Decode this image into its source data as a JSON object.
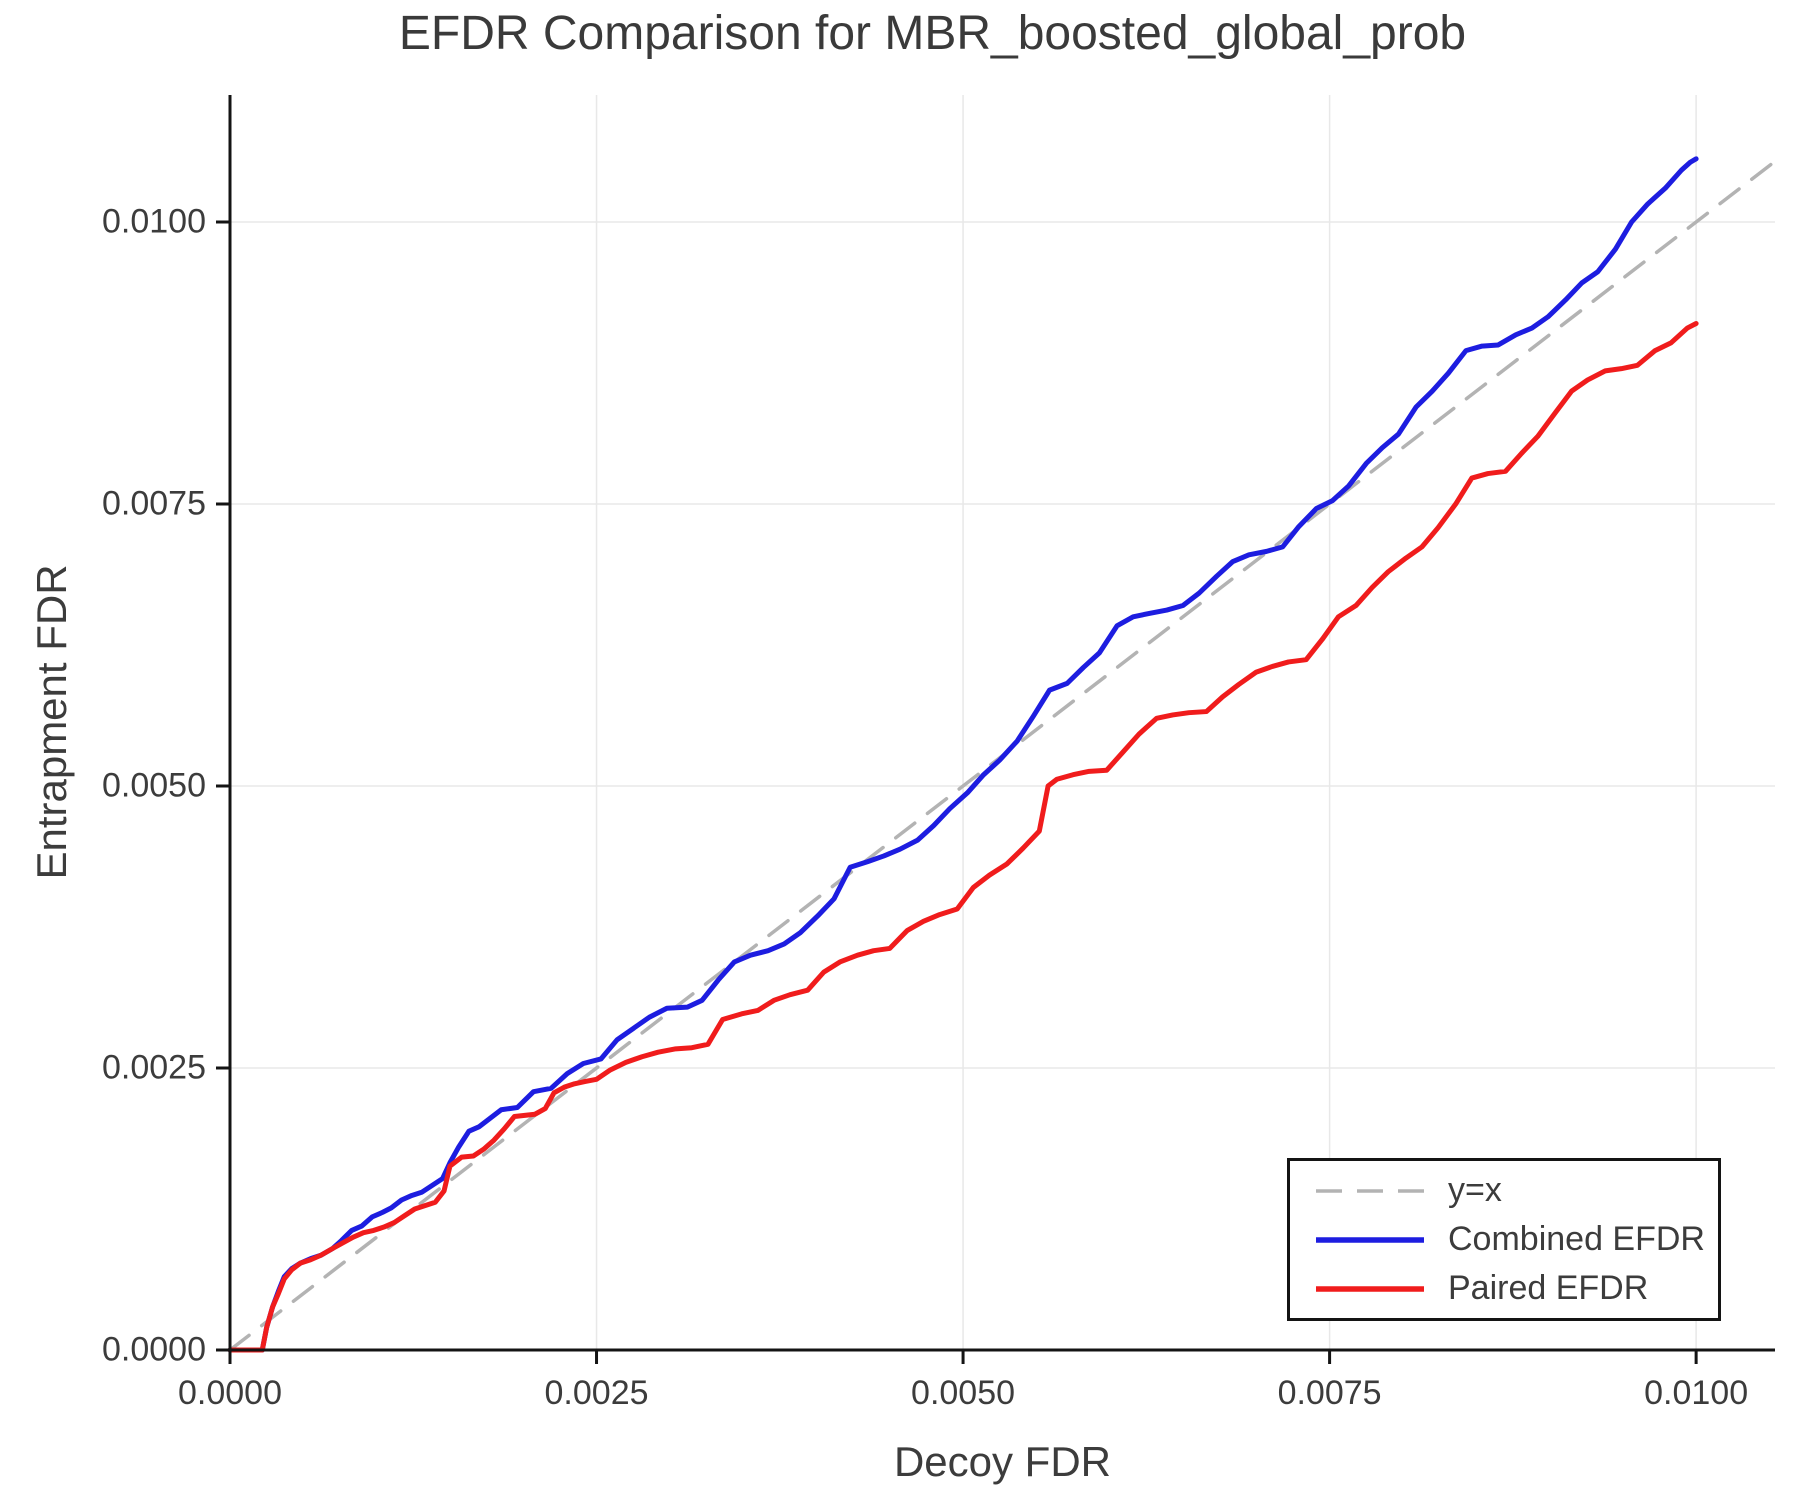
{
  "figure": {
    "background": "#ffffff",
    "text_color": "#3c3c3c",
    "axis_color": "#141414",
    "grid_color": "#e8e8e8"
  },
  "chart_data": {
    "type": "line",
    "title": "EFDR Comparison for MBR_boosted_global_prob",
    "xlabel": "Decoy FDR",
    "ylabel": "Entrapment FDR",
    "xlim": [
      0,
      0.010538
    ],
    "ylim": [
      0,
      0.011126
    ],
    "grid": true,
    "legend_position": "lower right",
    "x_tick_labels": [
      "0.0000",
      "0.0025",
      "0.0050",
      "0.0075",
      "0.0100"
    ],
    "x_tick_values": [
      0,
      0.0025,
      0.005,
      0.0075,
      0.01
    ],
    "y_tick_labels": [
      "0.0000",
      "0.0025",
      "0.0050",
      "0.0075",
      "0.0100"
    ],
    "y_tick_values": [
      0,
      0.0025,
      0.005,
      0.0075,
      0.01
    ],
    "points_scale": 0.0001,
    "series": [
      {
        "name": "y=x",
        "color": "#b3b3b3",
        "style": "dashed",
        "width": 3.5,
        "points": [
          [
            0,
            0
          ],
          [
            105.4,
            105.4
          ]
        ]
      },
      {
        "name": "Combined EFDR",
        "color": "#1d1de0",
        "style": "solid",
        "width": 5,
        "points": [
          [
            0,
            0
          ],
          [
            2.2,
            0
          ],
          [
            2.5,
            2
          ],
          [
            2.9,
            3.8
          ],
          [
            3.3,
            5.2
          ],
          [
            3.7,
            6.5
          ],
          [
            4.2,
            7.2
          ],
          [
            4.8,
            7.7
          ],
          [
            5.5,
            8.1
          ],
          [
            6.2,
            8.4
          ],
          [
            7,
            9
          ],
          [
            7.6,
            9.7
          ],
          [
            8.3,
            10.6
          ],
          [
            9,
            11
          ],
          [
            9.7,
            11.8
          ],
          [
            10.4,
            12.2
          ],
          [
            11,
            12.6
          ],
          [
            11.7,
            13.3
          ],
          [
            12.4,
            13.7
          ],
          [
            13.1,
            14
          ],
          [
            13.8,
            14.6
          ],
          [
            14.5,
            15.2
          ],
          [
            15,
            16.6
          ],
          [
            15.6,
            18
          ],
          [
            16.3,
            19.4
          ],
          [
            17,
            19.8
          ],
          [
            17.8,
            20.6
          ],
          [
            18.5,
            21.3
          ],
          [
            19.6,
            21.5
          ],
          [
            20.7,
            22.9
          ],
          [
            21.9,
            23.2
          ],
          [
            23,
            24.5
          ],
          [
            24.1,
            25.4
          ],
          [
            25.3,
            25.8
          ],
          [
            26.4,
            27.5
          ],
          [
            27.5,
            28.5
          ],
          [
            28.6,
            29.5
          ],
          [
            29.8,
            30.3
          ],
          [
            31.2,
            30.4
          ],
          [
            32.2,
            31
          ],
          [
            33.3,
            32.8
          ],
          [
            34.4,
            34.4
          ],
          [
            35.5,
            35
          ],
          [
            36.7,
            35.4
          ],
          [
            37.8,
            36
          ],
          [
            38.9,
            37
          ],
          [
            40.1,
            38.5
          ],
          [
            41.2,
            40
          ],
          [
            42.3,
            42.8
          ],
          [
            43.5,
            43.3
          ],
          [
            44.6,
            43.8
          ],
          [
            45.7,
            44.4
          ],
          [
            46.9,
            45.2
          ],
          [
            48,
            46.5
          ],
          [
            49.1,
            48
          ],
          [
            50.3,
            49.4
          ],
          [
            51.4,
            51
          ],
          [
            52.5,
            52.3
          ],
          [
            53.7,
            54
          ],
          [
            54.8,
            56.2
          ],
          [
            55.9,
            58.5
          ],
          [
            57.1,
            59.1
          ],
          [
            58.2,
            60.5
          ],
          [
            59.3,
            61.8
          ],
          [
            60.5,
            64.2
          ],
          [
            61.6,
            65
          ],
          [
            62.7,
            65.3
          ],
          [
            63.9,
            65.6
          ],
          [
            65,
            66
          ],
          [
            66.1,
            67.1
          ],
          [
            67.3,
            68.6
          ],
          [
            68.4,
            69.9
          ],
          [
            69.5,
            70.5
          ],
          [
            70.7,
            70.8
          ],
          [
            71.8,
            71.2
          ],
          [
            72.9,
            73
          ],
          [
            74.1,
            74.6
          ],
          [
            75.2,
            75.3
          ],
          [
            76.3,
            76.6
          ],
          [
            77.5,
            78.6
          ],
          [
            78.6,
            80
          ],
          [
            79.7,
            81.2
          ],
          [
            80.9,
            83.6
          ],
          [
            82,
            85
          ],
          [
            83.1,
            86.6
          ],
          [
            84.3,
            88.6
          ],
          [
            85.4,
            89
          ],
          [
            86.5,
            89.1
          ],
          [
            87.7,
            90
          ],
          [
            88.8,
            90.6
          ],
          [
            89.9,
            91.6
          ],
          [
            91.1,
            93.1
          ],
          [
            92.2,
            94.6
          ],
          [
            93.3,
            95.6
          ],
          [
            94.5,
            97.6
          ],
          [
            95.6,
            100
          ],
          [
            96.7,
            101.6
          ],
          [
            97.9,
            103
          ],
          [
            99,
            104.6
          ],
          [
            99.6,
            105.3
          ],
          [
            100,
            105.6
          ]
        ]
      },
      {
        "name": "Paired EFDR",
        "color": "#f01c1c",
        "style": "solid",
        "width": 5,
        "points": [
          [
            0,
            0
          ],
          [
            2.2,
            0
          ],
          [
            2.5,
            2
          ],
          [
            2.9,
            3.8
          ],
          [
            3.3,
            5
          ],
          [
            3.7,
            6.3
          ],
          [
            4.2,
            7.1
          ],
          [
            4.8,
            7.7
          ],
          [
            5.5,
            8
          ],
          [
            6.2,
            8.4
          ],
          [
            7,
            9
          ],
          [
            7.7,
            9.5
          ],
          [
            8.4,
            10
          ],
          [
            9.1,
            10.4
          ],
          [
            9.8,
            10.6
          ],
          [
            10.5,
            10.9
          ],
          [
            11.2,
            11.3
          ],
          [
            11.9,
            11.9
          ],
          [
            12.6,
            12.5
          ],
          [
            13.3,
            12.8
          ],
          [
            14,
            13.1
          ],
          [
            14.6,
            14.1
          ],
          [
            15,
            16.3
          ],
          [
            15.8,
            17.1
          ],
          [
            16.6,
            17.2
          ],
          [
            17.3,
            17.8
          ],
          [
            18,
            18.6
          ],
          [
            18.7,
            19.6
          ],
          [
            19.4,
            20.7
          ],
          [
            20.1,
            20.8
          ],
          [
            20.8,
            20.9
          ],
          [
            21.5,
            21.4
          ],
          [
            22.1,
            22.8
          ],
          [
            22.8,
            23.3
          ],
          [
            23.5,
            23.6
          ],
          [
            24.2,
            23.8
          ],
          [
            25,
            24
          ],
          [
            25.9,
            24.8
          ],
          [
            27,
            25.5
          ],
          [
            28.1,
            26
          ],
          [
            29.2,
            26.4
          ],
          [
            30.4,
            26.7
          ],
          [
            31.5,
            26.8
          ],
          [
            32.6,
            27.1
          ],
          [
            33.6,
            29.3
          ],
          [
            34.9,
            29.8
          ],
          [
            36,
            30.1
          ],
          [
            37.1,
            31
          ],
          [
            38.2,
            31.5
          ],
          [
            39.4,
            31.9
          ],
          [
            40.5,
            33.5
          ],
          [
            41.6,
            34.4
          ],
          [
            42.8,
            35
          ],
          [
            43.9,
            35.4
          ],
          [
            45,
            35.6
          ],
          [
            46.2,
            37.2
          ],
          [
            47.3,
            38
          ],
          [
            48.4,
            38.6
          ],
          [
            49.6,
            39.1
          ],
          [
            50.7,
            41
          ],
          [
            51.8,
            42.1
          ],
          [
            53,
            43.1
          ],
          [
            54.1,
            44.5
          ],
          [
            55.2,
            46
          ],
          [
            55.8,
            50
          ],
          [
            56.4,
            50.6
          ],
          [
            57.5,
            51
          ],
          [
            58.6,
            51.3
          ],
          [
            59.8,
            51.4
          ],
          [
            60.9,
            53
          ],
          [
            62,
            54.6
          ],
          [
            63.2,
            56
          ],
          [
            64.3,
            56.3
          ],
          [
            65.4,
            56.5
          ],
          [
            66.6,
            56.6
          ],
          [
            67.7,
            57.9
          ],
          [
            68.8,
            59
          ],
          [
            70,
            60.1
          ],
          [
            71.1,
            60.6
          ],
          [
            72.2,
            61
          ],
          [
            73.4,
            61.2
          ],
          [
            74.5,
            63
          ],
          [
            75.6,
            65
          ],
          [
            76.8,
            66
          ],
          [
            77.9,
            67.6
          ],
          [
            79,
            69
          ],
          [
            80.2,
            70.2
          ],
          [
            81.3,
            71.2
          ],
          [
            82.4,
            72.9
          ],
          [
            83.6,
            75
          ],
          [
            84.7,
            77.3
          ],
          [
            85.8,
            77.7
          ],
          [
            87,
            77.9
          ],
          [
            88.1,
            79.5
          ],
          [
            89.2,
            81
          ],
          [
            90.4,
            83.1
          ],
          [
            91.5,
            85
          ],
          [
            92.6,
            86
          ],
          [
            93.8,
            86.8
          ],
          [
            94.9,
            87
          ],
          [
            96,
            87.3
          ],
          [
            97.2,
            88.6
          ],
          [
            98.3,
            89.3
          ],
          [
            99.4,
            90.6
          ],
          [
            100,
            91
          ]
        ]
      }
    ],
    "legend": {
      "entries": [
        {
          "label": "y=x"
        },
        {
          "label": "Combined EFDR"
        },
        {
          "label": "Paired EFDR"
        }
      ]
    }
  }
}
